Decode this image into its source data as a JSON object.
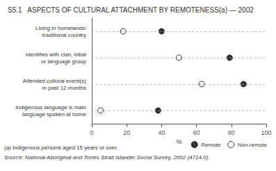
{
  "chart_data": {
    "type": "dot",
    "title": "S5.1   ASPECTS OF CULTURAL ATTACHMENT BY REMOTENESS(a) — 2002",
    "categories": [
      "Living in homelands/\ntraditional country",
      "Identifies with clan, tribal\nor language group",
      "Attended cultural event(s)\nin past 12 months",
      "Indigenous language is main\nlanguage spoken at home"
    ],
    "series": [
      {
        "name": "Remote",
        "color": "#000000",
        "marker": "filled",
        "values": [
          40,
          79,
          87,
          38
        ]
      },
      {
        "name": "Non-remote",
        "color": "#000000",
        "marker": "open",
        "values": [
          18,
          50,
          63,
          5
        ]
      }
    ],
    "xlabel": "%",
    "xlim": [
      0,
      100
    ],
    "xticks": [
      0,
      20,
      40,
      60,
      80,
      100
    ],
    "orientation": "horizontal",
    "grid": false,
    "legend": "lower right",
    "annotations": [
      "(a) Indigenous persons aged 15 years or over.",
      "Source: National Aboriginal and Torres Strait Islander Social Survey, 2002 (4714.0)."
    ]
  }
}
